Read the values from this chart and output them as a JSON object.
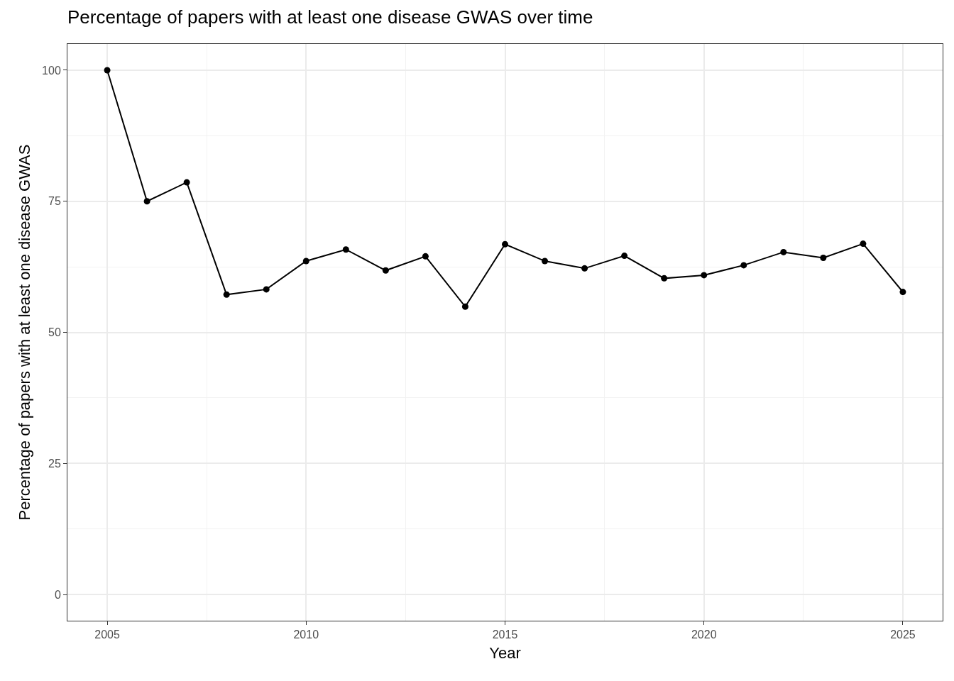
{
  "chart_data": {
    "type": "line",
    "title": "Percentage of papers with at least one disease GWAS over time",
    "xlabel": "Year",
    "ylabel": "Percentage of papers with at least one disease GWAS",
    "x": [
      2005,
      2006,
      2007,
      2008,
      2009,
      2010,
      2011,
      2012,
      2013,
      2014,
      2015,
      2016,
      2017,
      2018,
      2019,
      2020,
      2021,
      2022,
      2023,
      2024,
      2025
    ],
    "series": [
      {
        "color": "#000000",
        "values": [
          100,
          75.0,
          78.6,
          57.2,
          58.2,
          63.6,
          65.8,
          61.8,
          64.5,
          54.9,
          66.8,
          63.6,
          62.2,
          64.6,
          60.3,
          60.9,
          62.8,
          65.3,
          64.2,
          66.9,
          57.7
        ]
      }
    ],
    "xlim": [
      2004,
      2026
    ],
    "xticks": [
      2005,
      2010,
      2015,
      2020,
      2025
    ],
    "ylim": [
      -5,
      105
    ],
    "yticks": [
      0,
      25,
      50,
      75,
      100
    ],
    "grid": true,
    "marker": "circle",
    "line_style": "solid"
  }
}
